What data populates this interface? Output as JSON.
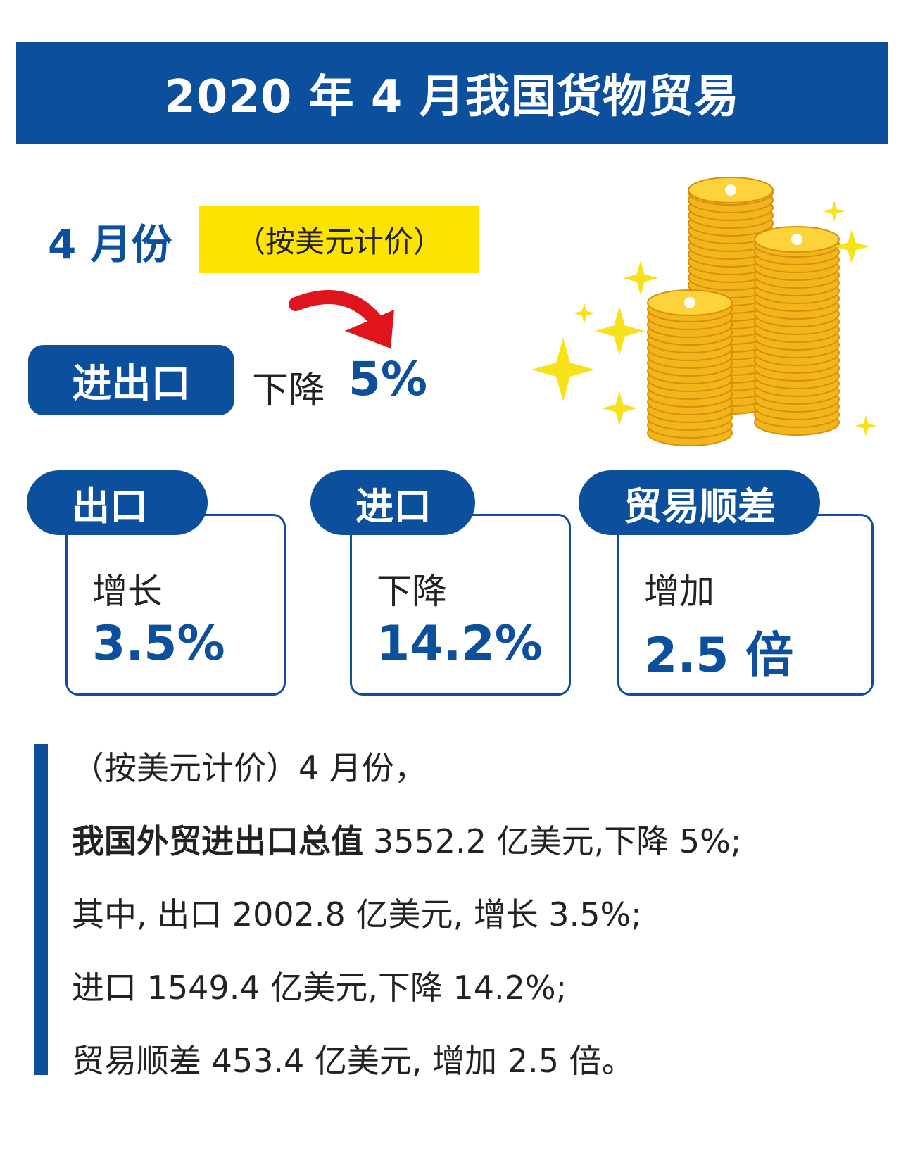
{
  "header": {
    "title": "2020 年 4 月我国货物贸易"
  },
  "period": {
    "month": "4 月份",
    "basis": "（按美元计价）"
  },
  "total": {
    "label": "进出口",
    "change": "下降",
    "value": "5%"
  },
  "cards": [
    {
      "label": "出口",
      "change": "增长",
      "value": "3.5%"
    },
    {
      "label": "进口",
      "change": "下降",
      "value": "14.2%"
    },
    {
      "label": "贸易顺差",
      "change": "增加",
      "value": "2.5 倍"
    }
  ],
  "summary": {
    "lines": [
      {
        "text": "（按美元计价）4 月份，"
      },
      {
        "bold": "我国外贸进出口总值",
        "text": "3552.2 亿美元,下降 5%;"
      },
      {
        "text": "其中, 出口 2002.8 亿美元, 增长 3.5%;"
      },
      {
        "text": "进口 1549.4 亿美元,下降 14.2%;"
      },
      {
        "text": "贸易顺差 453.4 亿美元, 增加 2.5 倍。"
      }
    ]
  }
}
